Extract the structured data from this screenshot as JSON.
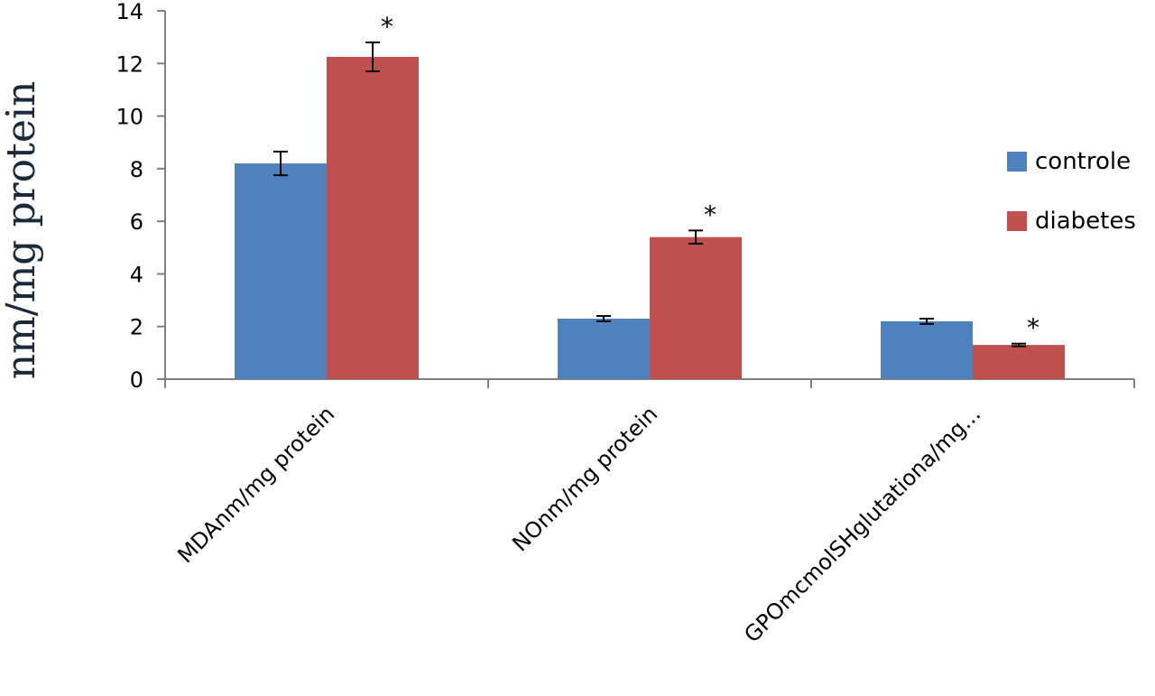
{
  "chart_data": {
    "type": "bar",
    "title": "",
    "xlabel": "",
    "ylabel": "nm/mg protein",
    "ylim": [
      0,
      14
    ],
    "yticks": [
      0,
      2,
      4,
      6,
      8,
      10,
      12,
      14
    ],
    "categories": [
      "MDAnm/mg protein",
      "NOnm/mg protein",
      "GPOmcmolSHglutationa/mg..."
    ],
    "series": [
      {
        "name": "controle",
        "color": "#4F81BD",
        "values": [
          8.2,
          2.3,
          2.2
        ],
        "errors": [
          0.45,
          0.1,
          0.1
        ],
        "markers": [
          "",
          "",
          ""
        ]
      },
      {
        "name": "diabetes",
        "color": "#C0504D",
        "values": [
          12.25,
          5.4,
          1.3
        ],
        "errors": [
          0.55,
          0.25,
          0.05
        ],
        "markers": [
          "*",
          "*",
          "*"
        ]
      }
    ],
    "legend_position": "right",
    "grid": false
  }
}
